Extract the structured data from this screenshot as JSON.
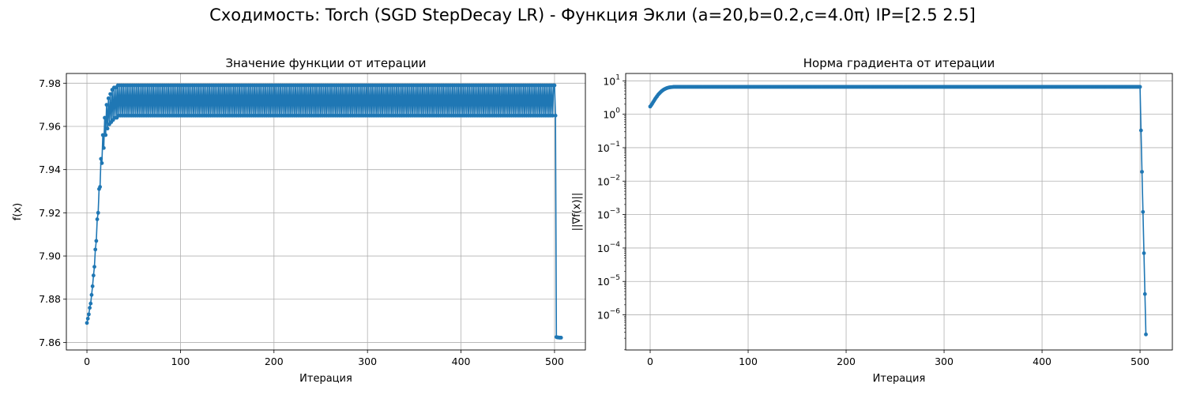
{
  "figure": {
    "suptitle": "Сходимость: Torch (SGD StepDecay LR) - Функция Экли (a=20,b=0.2,c=4.0π) IP=[2.5 2.5]"
  },
  "colors": {
    "series": "#1f77b4",
    "grid": "#b0b0b0",
    "axes": "#000000"
  },
  "chart_data": [
    {
      "type": "line",
      "title": "Значение функции от итерации",
      "xlabel": "Итерация",
      "ylabel": "f(x)",
      "xlim": [
        -22,
        533
      ],
      "ylim": [
        7.8565,
        7.9845
      ],
      "xticks": [
        0,
        100,
        200,
        300,
        400,
        500
      ],
      "yticks": [
        7.86,
        7.88,
        7.9,
        7.92,
        7.94,
        7.96,
        7.98
      ],
      "ytick_labels": [
        "7.86",
        "7.88",
        "7.90",
        "7.92",
        "7.94",
        "7.96",
        "7.98"
      ],
      "grid": true,
      "marker": "circle",
      "oscillation": {
        "from": 40,
        "to": 500,
        "high": 7.979,
        "low": 7.965
      },
      "x": [
        0,
        1,
        2,
        3,
        4,
        5,
        6,
        7,
        8,
        9,
        10,
        11,
        12,
        13,
        14,
        15,
        16,
        17,
        18,
        19,
        20,
        21,
        22,
        23,
        24,
        25,
        26,
        27,
        28,
        29,
        30,
        31,
        32,
        33,
        34,
        35,
        36,
        37,
        38,
        39,
        40,
        500,
        501,
        502,
        503,
        504,
        505,
        506,
        507
      ],
      "y": [
        7.869,
        7.871,
        7.873,
        7.876,
        7.878,
        7.882,
        7.886,
        7.891,
        7.895,
        7.903,
        7.907,
        7.917,
        7.92,
        7.931,
        7.932,
        7.945,
        7.943,
        7.956,
        7.95,
        7.964,
        7.956,
        7.97,
        7.959,
        7.973,
        7.961,
        7.975,
        7.962,
        7.977,
        7.963,
        7.978,
        7.964,
        7.978,
        7.964,
        7.979,
        7.965,
        7.979,
        7.965,
        7.979,
        7.965,
        7.979,
        7.965,
        7.979,
        7.965,
        7.8625,
        7.8623,
        7.8623,
        7.8622,
        7.8622,
        7.8622
      ]
    },
    {
      "type": "line",
      "title": "Норма градиента от итерации",
      "xlabel": "Итерация",
      "ylabel": "||∇f(x)||",
      "xlim": [
        -25,
        533
      ],
      "ylim": [
        -7.05,
        1.22
      ],
      "yscale": "log",
      "xticks": [
        0,
        100,
        200,
        300,
        400,
        500
      ],
      "ytick_exponents": [
        -6,
        -5,
        -4,
        -3,
        -2,
        -1,
        0,
        1
      ],
      "grid": true,
      "marker": "circle",
      "plateau": {
        "from": 24,
        "to": 500,
        "value": 6.6
      },
      "x": [
        0,
        1,
        2,
        3,
        4,
        5,
        6,
        7,
        8,
        9,
        10,
        11,
        12,
        13,
        14,
        15,
        16,
        17,
        18,
        19,
        20,
        21,
        22,
        23,
        24,
        500,
        501,
        502,
        503,
        504,
        505,
        506
      ],
      "y": [
        1.7,
        1.85,
        2.05,
        2.3,
        2.55,
        2.85,
        3.15,
        3.45,
        3.8,
        4.1,
        4.4,
        4.7,
        5.0,
        5.25,
        5.5,
        5.7,
        5.9,
        6.05,
        6.2,
        6.3,
        6.4,
        6.45,
        6.5,
        6.55,
        6.6,
        6.6,
        0.33,
        0.019,
        0.0012,
        7e-05,
        4.2e-06,
        2.6e-07
      ]
    }
  ]
}
